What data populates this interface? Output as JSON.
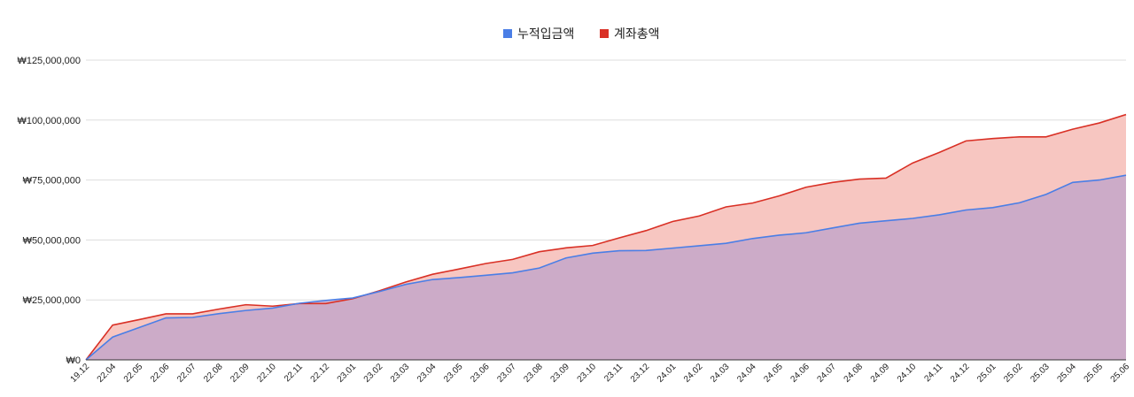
{
  "chart_data": {
    "type": "area",
    "title": "",
    "xlabel": "",
    "ylabel": "",
    "legend_position": "top",
    "grid": true,
    "ylim": [
      0,
      125000000
    ],
    "y_ticks": [
      0,
      25000000,
      50000000,
      75000000,
      100000000,
      125000000
    ],
    "y_tick_labels": [
      "₩0",
      "₩25,000,000",
      "₩50,000,000",
      "₩75,000,000",
      "₩100,000,000",
      "₩125,000,000"
    ],
    "categories": [
      "19.12",
      "22.04",
      "22.05",
      "22.06",
      "22.07",
      "22.08",
      "22.09",
      "22.10",
      "22.11",
      "22.12",
      "23.01",
      "23.02",
      "23.03",
      "23.04",
      "23.05",
      "23.06",
      "23.07",
      "23.08",
      "23.09",
      "23.10",
      "23.11",
      "23.12",
      "24.01",
      "24.02",
      "24.03",
      "24.04",
      "24.05",
      "24.06",
      "24.07",
      "24.08",
      "24.09",
      "24.10",
      "24.11",
      "24.12",
      "25.01",
      "25.02",
      "25.03",
      "25.04",
      "25.05",
      "25.06"
    ],
    "series": [
      {
        "name": "누적입금액",
        "color": "#4a7ee6",
        "fill": "#c4a6c9",
        "values": [
          0,
          9500000,
          13500000,
          17500000,
          17700000,
          19300000,
          20600000,
          21600000,
          23600000,
          24800000,
          25800000,
          28500000,
          31500000,
          33500000,
          34300000,
          35300000,
          36300000,
          38300000,
          42500000,
          44500000,
          45500000,
          45600000,
          46600000,
          47600000,
          48600000,
          50600000,
          52000000,
          53000000,
          55000000,
          57000000,
          58000000,
          59000000,
          60500000,
          62500000,
          63500000,
          65500000,
          69000000,
          74000000,
          75000000,
          77000000
        ]
      },
      {
        "name": "계좌총액",
        "color": "#d93025",
        "fill": "#f7c6c1",
        "values": [
          0,
          14500000,
          16800000,
          19200000,
          19200000,
          21200000,
          23000000,
          22400000,
          23500000,
          23500000,
          25500000,
          28800000,
          32500000,
          35700000,
          37900000,
          40200000,
          41900000,
          45100000,
          46700000,
          47700000,
          50900000,
          53900000,
          57700000,
          60000000,
          63800000,
          65400000,
          68400000,
          72000000,
          74000000,
          75400000,
          75800000,
          82100000,
          86500000,
          91300000,
          92300000,
          93000000,
          93000000,
          96200000,
          98800000,
          102300000
        ]
      }
    ]
  }
}
